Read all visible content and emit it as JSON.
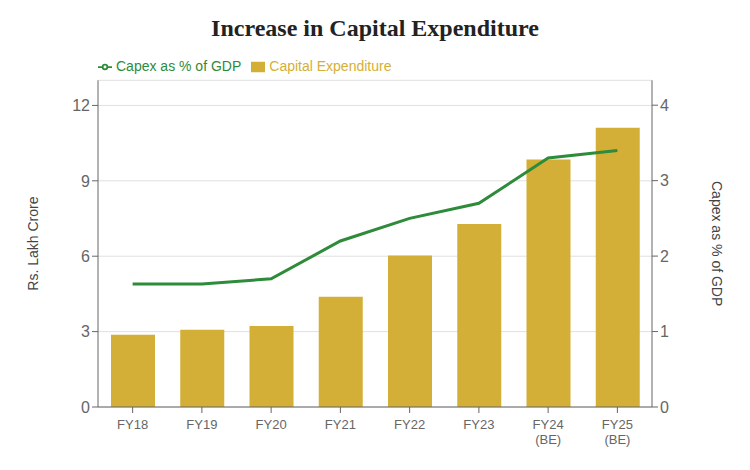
{
  "chart_data": {
    "type": "bar",
    "title": "Increase in Capital Expenditure",
    "categories": [
      "FY18",
      "FY19",
      "FY20",
      "FY21",
      "FY22",
      "FY23",
      "FY24\n(BE)",
      "FY25\n(BE)"
    ],
    "series": [
      {
        "name": "Capital Expenditure",
        "type": "bar",
        "color": "#D4AF37",
        "values": [
          2.87,
          3.07,
          3.22,
          4.39,
          6.03,
          7.28,
          9.85,
          11.11
        ]
      },
      {
        "name": "Capex as % of GDP",
        "type": "line",
        "color": "#2E8B3A",
        "axis": "y2",
        "values": [
          1.63,
          1.63,
          1.7,
          2.2,
          2.5,
          2.7,
          3.3,
          3.4
        ]
      }
    ],
    "ylabel": "Rs. Lakh Crore",
    "y2label": "Capex as % of GDP",
    "ylim": [
      0,
      13
    ],
    "yticks": [
      0,
      3,
      6,
      9,
      12
    ],
    "y2lim": [
      0,
      4.33
    ],
    "y2ticks": [
      0,
      1,
      2,
      3,
      4
    ],
    "grid": true,
    "legend": "upper left"
  }
}
